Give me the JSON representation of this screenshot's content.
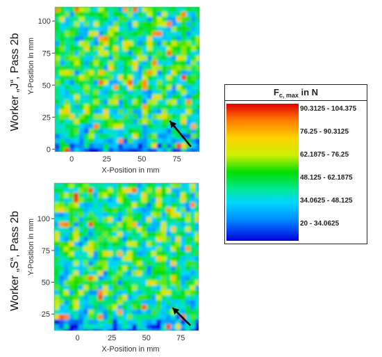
{
  "chart_data": [
    {
      "type": "heatmap",
      "title": "Worker „J“, Pass 2b",
      "xlabel": "X-Position in mm",
      "ylabel": "Y-Position in mm",
      "xlim": [
        -12,
        91
      ],
      "ylim": [
        -2,
        111
      ],
      "x_ticks": [
        "0",
        "25",
        "50",
        "75"
      ],
      "x_tick_values": [
        0,
        25,
        50,
        75
      ],
      "y_ticks": [
        "0",
        "25",
        "50",
        "75",
        "100"
      ],
      "y_tick_values": [
        0,
        25,
        50,
        75,
        100
      ],
      "annotation": "arrow",
      "arrow_tip": [
        70,
        22
      ],
      "arrow_tail": [
        85,
        2
      ],
      "colorscale": "Fc,max in N"
    },
    {
      "type": "heatmap",
      "title": "Worker „S“, Pass 2b",
      "xlabel": "X-Position in mm",
      "ylabel": "Y-Position in mm",
      "xlim": [
        -17,
        88
      ],
      "ylim": [
        12,
        128
      ],
      "x_ticks": [
        "0",
        "25",
        "50",
        "75"
      ],
      "x_tick_values": [
        0,
        25,
        50,
        75
      ],
      "y_ticks": [
        "25",
        "50",
        "75",
        "100"
      ],
      "y_tick_values": [
        25,
        50,
        75,
        100
      ],
      "annotation": "arrow",
      "arrow_tip": [
        69,
        30
      ],
      "arrow_tail": [
        82,
        16
      ],
      "colorscale": "Fc,max in N"
    }
  ],
  "legend": {
    "title_main": "F",
    "title_sub": "c, max",
    "title_unit": " in N",
    "ranges": [
      "90.3125 - 104.375",
      "76.25 - 90.3125",
      "62.1875 - 76.25",
      "48.125 - 62.1875",
      "34.0625 - 48.125",
      "20 - 34.0625"
    ]
  },
  "colors": {
    "low": "#0000e0",
    "mid_low": "#00d8ff",
    "mid": "#00dd00",
    "mid_high": "#ffd200",
    "high": "#e00000"
  }
}
